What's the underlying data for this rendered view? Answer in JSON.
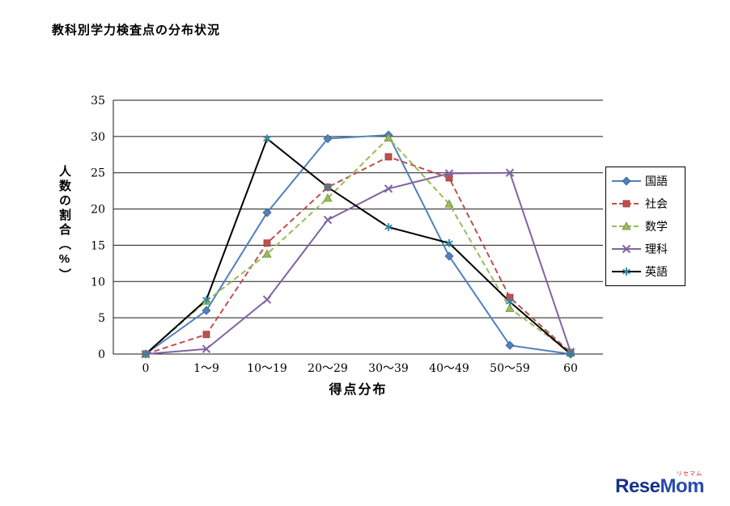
{
  "page": {
    "title": "教科別学力検査点の分布状況"
  },
  "logo": {
    "text_primary": "Rese",
    "text_secondary": "Mom",
    "ruby": "リセマム"
  },
  "chart_data": {
    "type": "line",
    "title": "教科別学力検査点の分布状況",
    "xlabel": "得点分布",
    "ylabel": "人数の割合（%）",
    "ylim": [
      0,
      35
    ],
    "ytick_step": 5,
    "grid": true,
    "legend_position": "right",
    "categories": [
      "0",
      "1〜9",
      "10〜19",
      "20〜29",
      "30〜39",
      "40〜49",
      "50〜59",
      "60"
    ],
    "series": [
      {
        "name": "国語",
        "color": "#4F81BD",
        "marker": "diamond",
        "marker_color": "#4F81BD",
        "dash": "solid",
        "values": [
          0,
          6.0,
          19.5,
          29.7,
          30.2,
          13.5,
          1.2,
          0
        ]
      },
      {
        "name": "社会",
        "color": "#C0504D",
        "marker": "square",
        "marker_color": "#C0504D",
        "dash": "dashed",
        "values": [
          0,
          2.7,
          15.3,
          23.0,
          27.2,
          24.3,
          7.8,
          0.2
        ]
      },
      {
        "name": "数学",
        "color": "#9BBB59",
        "marker": "triangle",
        "marker_color": "#9BBB59",
        "dash": "dashed",
        "values": [
          0,
          7.3,
          13.8,
          21.5,
          29.8,
          20.7,
          6.3,
          0.2
        ]
      },
      {
        "name": "理科",
        "color": "#8064A2",
        "marker": "x",
        "marker_color": "#8064A2",
        "dash": "solid",
        "values": [
          0,
          0.7,
          7.5,
          18.5,
          22.8,
          24.9,
          25.0,
          0.3
        ]
      },
      {
        "name": "英語",
        "color": "#000000",
        "marker": "asterisk",
        "marker_color": "#31859C",
        "dash": "solid",
        "values": [
          0,
          7.5,
          29.7,
          23.0,
          17.5,
          15.3,
          7.2,
          0
        ]
      }
    ]
  }
}
